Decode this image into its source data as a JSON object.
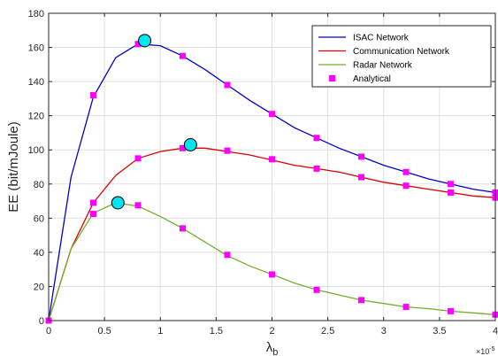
{
  "chart_data": {
    "type": "line",
    "xlabel": "λ",
    "xlabel_subscript": "b",
    "ylabel": "EE (bit/mJoule)",
    "x_multiplier": "×10",
    "x_multiplier_exp": "-5",
    "xlim": [
      0,
      4
    ],
    "ylim": [
      0,
      180
    ],
    "xticks": [
      0,
      0.5,
      1,
      1.5,
      2,
      2.5,
      3,
      3.5,
      4
    ],
    "xtick_labels": [
      "0",
      "0.5",
      "1",
      "1.5",
      "2",
      "2.5",
      "3",
      "3.5",
      "4"
    ],
    "yticks": [
      0,
      20,
      40,
      60,
      80,
      100,
      120,
      140,
      160,
      180
    ],
    "ytick_labels": [
      "0",
      "20",
      "40",
      "60",
      "80",
      "100",
      "120",
      "140",
      "160",
      "180"
    ],
    "grid": true,
    "legend_position": "top-right",
    "series": [
      {
        "name": "ISAC Network",
        "color": "#0000cc",
        "x": [
          0,
          0.2,
          0.4,
          0.6,
          0.8,
          1.0,
          1.2,
          1.4,
          1.6,
          1.8,
          2.0,
          2.2,
          2.4,
          2.6,
          2.8,
          3.0,
          3.2,
          3.4,
          3.6,
          3.8,
          4.0
        ],
        "y": [
          0,
          84,
          131,
          154,
          162,
          161,
          155,
          147,
          138,
          129,
          121,
          113,
          107,
          101,
          96,
          91,
          87,
          83,
          80,
          77,
          75
        ]
      },
      {
        "name": "Communication Network",
        "color": "#dd0000",
        "x": [
          0,
          0.2,
          0.4,
          0.6,
          0.8,
          1.0,
          1.2,
          1.4,
          1.6,
          1.8,
          2.0,
          2.2,
          2.4,
          2.6,
          2.8,
          3.0,
          3.2,
          3.4,
          3.6,
          3.8,
          4.0
        ],
        "y": [
          0,
          42,
          69,
          85,
          95,
          99,
          101,
          101,
          99,
          97,
          94,
          91,
          89,
          87,
          84,
          81,
          79,
          77,
          75,
          73,
          72
        ]
      },
      {
        "name": "Radar Network",
        "color": "#77ac30",
        "x": [
          0,
          0.2,
          0.4,
          0.6,
          0.8,
          1.0,
          1.2,
          1.4,
          1.6,
          1.8,
          2.0,
          2.2,
          2.4,
          2.6,
          2.8,
          3.0,
          3.2,
          3.4,
          3.6,
          3.8,
          4.0
        ],
        "y": [
          0,
          42,
          63,
          69,
          67,
          61,
          54,
          46,
          38,
          32,
          27,
          22,
          18,
          15,
          12,
          10,
          8,
          7,
          5.5,
          4.5,
          3.5
        ]
      }
    ],
    "analytical": {
      "name": "Analytical",
      "color": "#ff00ff",
      "points": [
        [
          0,
          0
        ],
        [
          0.4,
          132
        ],
        [
          0.8,
          162
        ],
        [
          1.2,
          155
        ],
        [
          1.6,
          138
        ],
        [
          2.0,
          121
        ],
        [
          2.4,
          107
        ],
        [
          2.8,
          96
        ],
        [
          3.2,
          87
        ],
        [
          3.6,
          80
        ],
        [
          4.0,
          75
        ],
        [
          0.4,
          69
        ],
        [
          0.8,
          95
        ],
        [
          1.2,
          101
        ],
        [
          1.6,
          99.5
        ],
        [
          2.0,
          94.5
        ],
        [
          2.4,
          89
        ],
        [
          2.8,
          84
        ],
        [
          3.2,
          79
        ],
        [
          3.6,
          75
        ],
        [
          4.0,
          72
        ],
        [
          0.4,
          62.5
        ],
        [
          0.8,
          67.5
        ],
        [
          1.2,
          54
        ],
        [
          1.6,
          38.5
        ],
        [
          2.0,
          27
        ],
        [
          2.4,
          18
        ],
        [
          2.8,
          12
        ],
        [
          3.2,
          8
        ],
        [
          3.6,
          5.5
        ],
        [
          4.0,
          3.5
        ]
      ]
    },
    "optimal_points": [
      {
        "series": "ISAC Network",
        "x": 0.86,
        "y": 164
      },
      {
        "series": "Communication Network",
        "x": 1.27,
        "y": 103
      },
      {
        "series": "Radar Network",
        "x": 0.62,
        "y": 69
      }
    ],
    "optimal_marker_color": "#00e5ee"
  }
}
